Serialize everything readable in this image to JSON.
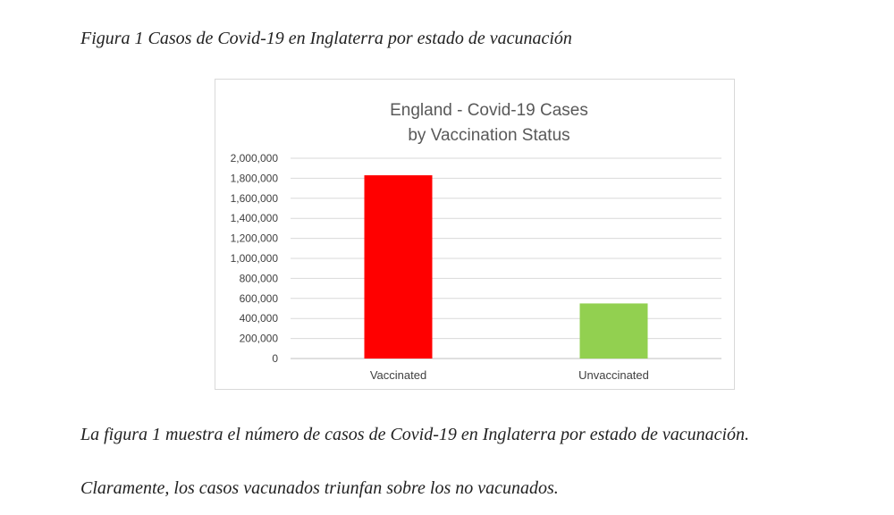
{
  "figure_caption": "Figura 1 Casos de Covid-19 en Inglaterra por estado de vacunación",
  "paragraphs": [
    "La figura 1 muestra el número de casos de Covid-19 en Inglaterra por estado de vacunación.",
    "Claramente, los casos vacunados triunfan sobre los no vacunados."
  ],
  "chart_data": {
    "type": "bar",
    "title": "England - Covid-19 Cases by Vaccination Status",
    "title_lines": [
      "England - Covid-19 Cases",
      "by Vaccination Status"
    ],
    "categories": [
      "Vaccinated",
      "Unvaccinated"
    ],
    "values": [
      1830000,
      550000
    ],
    "colors": [
      "#ff0000",
      "#92d050"
    ],
    "ylim": [
      0,
      2000000
    ],
    "yticks": [
      "0",
      "200,000",
      "400,000",
      "600,000",
      "800,000",
      "1,000,000",
      "1,200,000",
      "1,400,000",
      "1,600,000",
      "1,800,000",
      "2,000,000"
    ],
    "ytick_values": [
      0,
      200000,
      400000,
      600000,
      800000,
      1000000,
      1200000,
      1400000,
      1600000,
      1800000,
      2000000
    ],
    "grid": true,
    "legend": false
  }
}
